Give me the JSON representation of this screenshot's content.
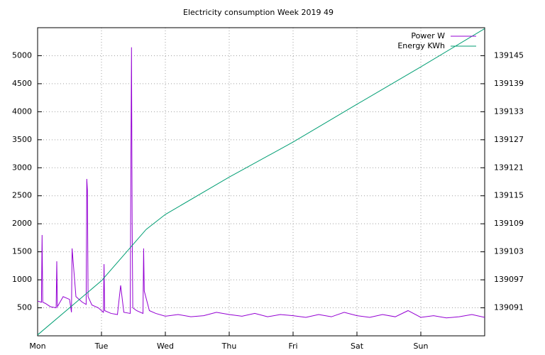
{
  "chart_data": {
    "type": "line",
    "title": "Electricity consumption Week 2019 49",
    "xlim": [
      0,
      7
    ],
    "xticks": [
      {
        "value": 0,
        "label": "Mon"
      },
      {
        "value": 1,
        "label": "Tue"
      },
      {
        "value": 2,
        "label": "Wed"
      },
      {
        "value": 3,
        "label": "Thu"
      },
      {
        "value": 4,
        "label": "Fri"
      },
      {
        "value": 5,
        "label": "Sat"
      },
      {
        "value": 6,
        "label": "Sun"
      }
    ],
    "ylim": [
      0,
      5500
    ],
    "yticks": [
      500,
      1000,
      1500,
      2000,
      2500,
      3000,
      3500,
      4000,
      4500,
      5000
    ],
    "y2lim": [
      139085,
      139151
    ],
    "y2ticks": [
      139091,
      139097,
      139103,
      139109,
      139115,
      139121,
      139127,
      139133,
      139139,
      139145
    ],
    "grid": true,
    "legend": "top-right",
    "series": [
      {
        "name": "Power W",
        "color": "#9400d3",
        "x": [
          0,
          0.06,
          0.07,
          0.08,
          0.12,
          0.2,
          0.29,
          0.3,
          0.31,
          0.4,
          0.5,
          0.53,
          0.54,
          0.6,
          0.7,
          0.76,
          0.77,
          0.78,
          0.79,
          0.85,
          0.95,
          1.03,
          1.04,
          1.05,
          1.15,
          1.25,
          1.3,
          1.35,
          1.45,
          1.46,
          1.47,
          1.48,
          1.49,
          1.55,
          1.65,
          1.66,
          1.67,
          1.75,
          1.85,
          2.0,
          2.2,
          2.4,
          2.6,
          2.8,
          3.0,
          3.2,
          3.4,
          3.6,
          3.8,
          4.0,
          4.2,
          4.4,
          4.6,
          4.8,
          5.0,
          5.2,
          5.4,
          5.6,
          5.8,
          6.0,
          6.2,
          6.4,
          6.6,
          6.8,
          7.0
        ],
        "values": [
          620,
          600,
          1800,
          600,
          580,
          520,
          500,
          1330,
          520,
          700,
          650,
          420,
          1560,
          700,
          600,
          560,
          2800,
          2600,
          700,
          550,
          500,
          420,
          1280,
          450,
          400,
          380,
          900,
          420,
          400,
          3000,
          5150,
          2050,
          500,
          450,
          400,
          1560,
          800,
          450,
          400,
          350,
          380,
          340,
          360,
          420,
          380,
          350,
          400,
          340,
          380,
          360,
          330,
          380,
          340,
          420,
          360,
          330,
          380,
          340,
          450,
          330,
          360,
          320,
          340,
          380,
          330
        ]
      },
      {
        "name": "Energy KWh",
        "color": "#009e73",
        "axis": "y2",
        "x": [
          0,
          1,
          1.7,
          2,
          3,
          4,
          5,
          6,
          7
        ],
        "values": [
          139085.2,
          139096.8,
          139107.8,
          139111,
          139119,
          139126.5,
          139134.6,
          139142.6,
          139150.8
        ]
      }
    ]
  }
}
